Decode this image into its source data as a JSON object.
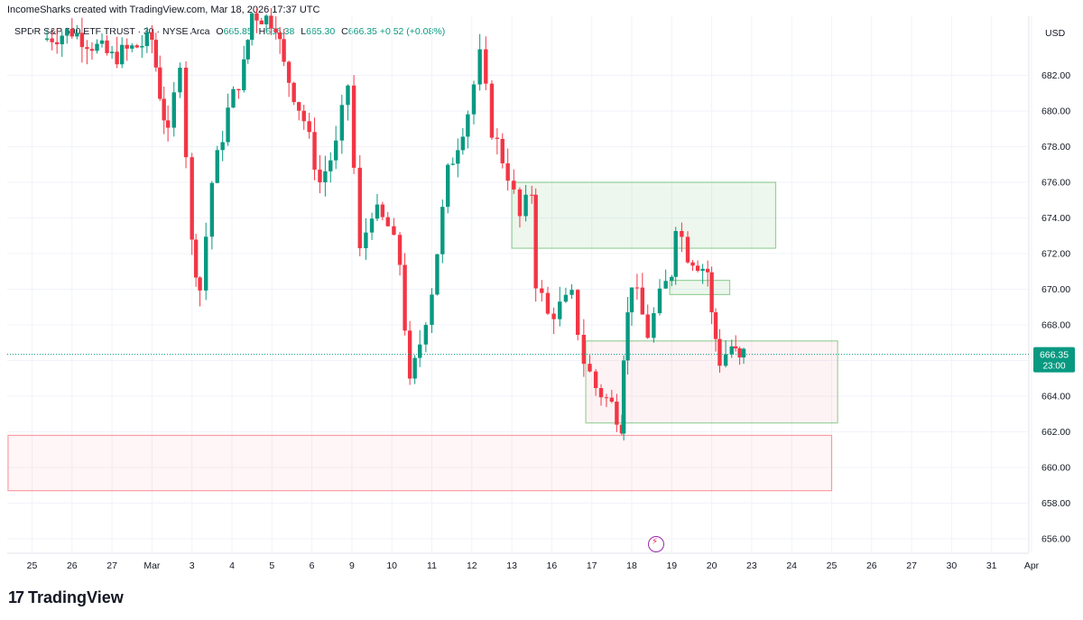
{
  "header": {
    "credit": "IncomeSharks created with TradingView.com, Mar 18, 2026 17:37 UTC",
    "symbol": "SPDR S&P 500 ETF TRUST · 30 · NYSE Arca",
    "o_label": "O",
    "o_value": "665.85",
    "h_label": "H",
    "h_value": "666.38",
    "l_label": "L",
    "l_value": "665.30",
    "c_label": "C",
    "c_value": "666.35",
    "change": "+0.52 (+0.08%)"
  },
  "currency": "USD",
  "footer": {
    "logo_mark": "17",
    "logo_text": "TradingView"
  },
  "colors": {
    "up": "#089981",
    "down": "#f23645",
    "zone_green": "#4caf50",
    "zone_red": "#f7525f"
  },
  "chart_data": {
    "type": "candlestick",
    "title": "SPDR S&P 500 ETF TRUST",
    "interval": "30",
    "ylim": [
      655,
      686
    ],
    "y_ticks": [
      656,
      658,
      660,
      662,
      664,
      666,
      668,
      670,
      672,
      674,
      676,
      678,
      680,
      682
    ],
    "y_tick_labels": [
      "656.00",
      "658.00",
      "660.00",
      "662.00",
      "664.00",
      "666.00",
      "668.00",
      "670.00",
      "672.00",
      "674.00",
      "676.00",
      "678.00",
      "680.00",
      "682.00"
    ],
    "x_tick_labels": [
      "25",
      "26",
      "27",
      "Mar",
      "3",
      "4",
      "5",
      "6",
      "9",
      "10",
      "11",
      "12",
      "13",
      "16",
      "17",
      "18",
      "19",
      "20",
      "23",
      "24",
      "25",
      "26",
      "27",
      "30",
      "31",
      "Apr"
    ],
    "last_price": "666.35",
    "last_price_countdown": "23:00",
    "price_path": [
      {
        "x": 0.25,
        "p": 684.0
      },
      {
        "x": 1.0,
        "p": 684.5
      },
      {
        "x": 2.0,
        "p": 683.0
      },
      {
        "x": 3.0,
        "p": 684.0
      },
      {
        "x": 3.2,
        "p": 681.0
      },
      {
        "x": 3.4,
        "p": 678.5
      },
      {
        "x": 3.7,
        "p": 683.0
      },
      {
        "x": 4.0,
        "p": 672.5
      },
      {
        "x": 4.2,
        "p": 670.0
      },
      {
        "x": 4.5,
        "p": 676.0
      },
      {
        "x": 4.9,
        "p": 680.0
      },
      {
        "x": 5.3,
        "p": 682.5
      },
      {
        "x": 5.5,
        "p": 685.5
      },
      {
        "x": 6.1,
        "p": 685.0
      },
      {
        "x": 6.3,
        "p": 682.5
      },
      {
        "x": 6.8,
        "p": 679.5
      },
      {
        "x": 7.2,
        "p": 676.0
      },
      {
        "x": 7.6,
        "p": 678.0
      },
      {
        "x": 7.9,
        "p": 681.5
      },
      {
        "x": 8.2,
        "p": 672.0
      },
      {
        "x": 8.5,
        "p": 674.5
      },
      {
        "x": 8.9,
        "p": 673.5
      },
      {
        "x": 9.2,
        "p": 671.5
      },
      {
        "x": 9.45,
        "p": 664.5
      },
      {
        "x": 9.7,
        "p": 667.0
      },
      {
        "x": 10.0,
        "p": 670.0
      },
      {
        "x": 10.4,
        "p": 676.5
      },
      {
        "x": 10.9,
        "p": 680.0
      },
      {
        "x": 11.2,
        "p": 683.0
      },
      {
        "x": 11.5,
        "p": 679.0
      },
      {
        "x": 11.9,
        "p": 676.5
      },
      {
        "x": 12.2,
        "p": 674.0
      },
      {
        "x": 12.5,
        "p": 675.5
      },
      {
        "x": 12.6,
        "p": 670.5
      },
      {
        "x": 12.9,
        "p": 668.5
      },
      {
        "x": 13.2,
        "p": 669.0
      },
      {
        "x": 13.5,
        "p": 669.5
      },
      {
        "x": 13.8,
        "p": 666.0
      },
      {
        "x": 14.1,
        "p": 664.5
      },
      {
        "x": 14.5,
        "p": 663.5
      },
      {
        "x": 14.75,
        "p": 662.5
      },
      {
        "x": 14.8,
        "p": 666.5
      },
      {
        "x": 15.0,
        "p": 670.5
      },
      {
        "x": 15.4,
        "p": 667.5
      },
      {
        "x": 15.7,
        "p": 669.5
      },
      {
        "x": 16.0,
        "p": 671.0
      },
      {
        "x": 16.1,
        "p": 673.8
      },
      {
        "x": 16.4,
        "p": 672.0
      },
      {
        "x": 16.9,
        "p": 671.0
      },
      {
        "x": 17.0,
        "p": 668.5
      },
      {
        "x": 17.2,
        "p": 666.0
      },
      {
        "x": 17.5,
        "p": 666.8
      },
      {
        "x": 17.7,
        "p": 665.9
      },
      {
        "x": 17.8,
        "p": 666.35
      }
    ],
    "zones": [
      {
        "name": "supply-zone",
        "x_from": 12.0,
        "x_to": 18.6,
        "y_from": 672.3,
        "y_to": 676.0,
        "color": "green"
      },
      {
        "name": "small-zone",
        "x_from": 15.95,
        "x_to": 17.45,
        "y_from": 669.7,
        "y_to": 670.5,
        "color": "green"
      },
      {
        "name": "mid-zone",
        "x_from": 13.85,
        "x_to": 20.15,
        "y_from": 662.5,
        "y_to": 667.1,
        "color": "red-fill-green-border"
      },
      {
        "name": "demand-zone",
        "x_from": -0.6,
        "x_to": 20.0,
        "y_from": 658.7,
        "y_to": 661.8,
        "color": "red"
      }
    ]
  }
}
